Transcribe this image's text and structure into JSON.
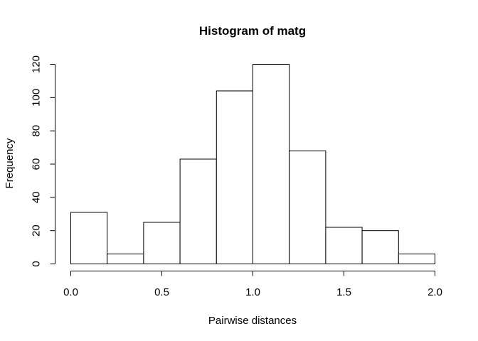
{
  "chart_data": {
    "type": "bar",
    "title": "Histogram of matg",
    "xlabel": "Pairwise distances",
    "ylabel": "Frequency",
    "bin_edges": [
      0.0,
      0.2,
      0.4,
      0.6,
      0.8,
      1.0,
      1.2,
      1.4,
      1.6,
      1.8,
      2.0
    ],
    "values": [
      31,
      6,
      25,
      63,
      104,
      120,
      68,
      22,
      20,
      6
    ],
    "xlim": [
      0.0,
      2.0
    ],
    "ylim": [
      0,
      120
    ],
    "x_ticks": [
      0.0,
      0.5,
      1.0,
      1.5,
      2.0
    ],
    "x_tick_labels": [
      "0.0",
      "0.5",
      "1.0",
      "1.5",
      "2.0"
    ],
    "y_ticks": [
      0,
      20,
      40,
      60,
      80,
      100,
      120
    ],
    "y_tick_labels": [
      "0",
      "20",
      "40",
      "60",
      "80",
      "100",
      "120"
    ],
    "grid": false,
    "legend": "none",
    "bar_fill": "#ffffff",
    "bar_stroke": "#000000"
  }
}
